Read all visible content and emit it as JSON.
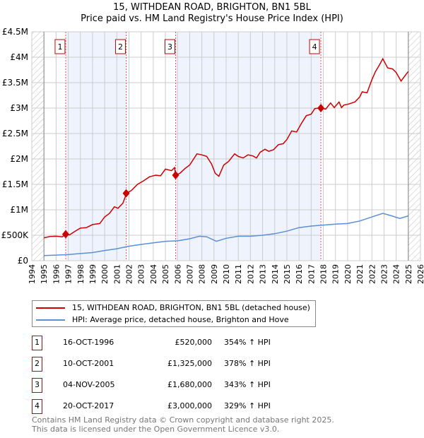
{
  "chart_data": {
    "type": "line",
    "title": "15, WITHDEAN ROAD, BRIGHTON, BN1 5BL",
    "subtitle": "Price paid vs. HM Land Registry's House Price Index (HPI)",
    "xlim": [
      1994,
      2026
    ],
    "ylim": [
      0,
      4500000
    ],
    "x_ticks": [
      "1994",
      "1995",
      "1996",
      "1997",
      "1998",
      "1999",
      "2000",
      "2001",
      "2002",
      "2003",
      "2004",
      "2005",
      "2006",
      "2007",
      "2008",
      "2009",
      "2010",
      "2011",
      "2012",
      "2013",
      "2014",
      "2015",
      "2016",
      "2017",
      "2018",
      "2019",
      "2020",
      "2021",
      "2022",
      "2023",
      "2024",
      "2025",
      "2026"
    ],
    "y_ticks": [
      {
        "v": 0,
        "label": "£0"
      },
      {
        "v": 500000,
        "label": "£500K"
      },
      {
        "v": 1000000,
        "label": "£1M"
      },
      {
        "v": 1500000,
        "label": "£1.5M"
      },
      {
        "v": 2000000,
        "label": "£2M"
      },
      {
        "v": 2500000,
        "label": "£2.5M"
      },
      {
        "v": 3000000,
        "label": "£3M"
      },
      {
        "v": 3500000,
        "label": "£3.5M"
      },
      {
        "v": 4000000,
        "label": "£4M"
      },
      {
        "v": 4500000,
        "label": "£4.5M"
      }
    ],
    "grid": true,
    "series": [
      {
        "name": "15, WITHDEAN ROAD, BRIGHTON, BN1 5BL (detached house)",
        "color": "#cc0000",
        "x": [
          1995,
          1995.5,
          1996,
          1996.5,
          1996.8,
          1997.1,
          1997.5,
          1998,
          1998.5,
          1999,
          1999.6,
          2000,
          2000.4,
          2000.8,
          2001.1,
          2001.5,
          2001.8,
          2002.2,
          2002.7,
          2003.2,
          2003.7,
          2004.2,
          2004.6,
          2005,
          2005.5,
          2005.75,
          2005.85,
          2006.2,
          2006.6,
          2007,
          2007.6,
          2008,
          2008.4,
          2008.8,
          2009.1,
          2009.4,
          2009.8,
          2010.2,
          2010.7,
          2011,
          2011.4,
          2011.8,
          2012.2,
          2012.5,
          2012.8,
          2013.2,
          2013.5,
          2013.9,
          2014.3,
          2014.7,
          2015,
          2015.4,
          2015.8,
          2016.2,
          2016.6,
          2017,
          2017.3,
          2017.6,
          2017.8,
          2018.2,
          2018.6,
          2018.9,
          2019.3,
          2019.5,
          2019.7,
          2020.1,
          2020.6,
          2021,
          2021.2,
          2021.6,
          2022,
          2022.3,
          2022.6,
          2022.9,
          2023.3,
          2023.7,
          2024,
          2024.4,
          2024.8,
          2025
        ],
        "y": [
          450000,
          475000,
          480000,
          470000,
          520000,
          505000,
          570000,
          640000,
          650000,
          710000,
          730000,
          860000,
          930000,
          1060000,
          1030000,
          1130000,
          1325000,
          1380000,
          1500000,
          1570000,
          1650000,
          1680000,
          1670000,
          1800000,
          1770000,
          1830000,
          1680000,
          1720000,
          1810000,
          1880000,
          2100000,
          2080000,
          2050000,
          1900000,
          1720000,
          1660000,
          1880000,
          1950000,
          2100000,
          2050000,
          2020000,
          2080000,
          2060000,
          2020000,
          2130000,
          2190000,
          2150000,
          2180000,
          2280000,
          2300000,
          2380000,
          2550000,
          2530000,
          2700000,
          2850000,
          2880000,
          2990000,
          3000000,
          3000000,
          2980000,
          3100000,
          3010000,
          3120000,
          3010000,
          3060000,
          3080000,
          3120000,
          3220000,
          3320000,
          3300000,
          3560000,
          3720000,
          3840000,
          3970000,
          3790000,
          3770000,
          3700000,
          3530000,
          3660000,
          3720000
        ]
      },
      {
        "name": "HPI: Average price, detached house, Brighton and Hove",
        "color": "#5b8fd6",
        "x": [
          1995,
          1996,
          1997,
          1998,
          1999,
          2000,
          2001,
          2002,
          2003,
          2004,
          2005,
          2006,
          2007,
          2007.8,
          2008.4,
          2009.2,
          2010,
          2011,
          2012,
          2013,
          2014,
          2015,
          2016,
          2017,
          2018,
          2019,
          2020,
          2021,
          2022,
          2022.9,
          2023.5,
          2024.3,
          2025
        ],
        "y": [
          100000,
          110000,
          120000,
          140000,
          160000,
          200000,
          235000,
          285000,
          320000,
          350000,
          380000,
          390000,
          430000,
          480000,
          470000,
          380000,
          440000,
          480000,
          480000,
          500000,
          530000,
          580000,
          650000,
          680000,
          700000,
          720000,
          730000,
          780000,
          860000,
          930000,
          890000,
          830000,
          880000
        ]
      }
    ],
    "sales": [
      {
        "id": "1",
        "x": 1996.79,
        "price": 520000,
        "date": "16-OCT-1996",
        "price_label": "£520,000",
        "hpi": "354% ↑ HPI"
      },
      {
        "id": "2",
        "x": 2001.77,
        "price": 1325000,
        "date": "10-OCT-2001",
        "price_label": "£1,325,000",
        "hpi": "378% ↑ HPI"
      },
      {
        "id": "3",
        "x": 2005.84,
        "price": 1680000,
        "date": "04-NOV-2005",
        "price_label": "£1,680,000",
        "hpi": "343% ↑ HPI"
      },
      {
        "id": "4",
        "x": 2017.8,
        "price": 3000000,
        "date": "20-OCT-2017",
        "price_label": "£3,000,000",
        "hpi": "329% ↑ HPI"
      }
    ],
    "hatched_ranges": [
      [
        1994,
        1995
      ],
      [
        2025,
        2026
      ]
    ],
    "shaded_ranges": [
      [
        1996.79,
        2001.77
      ],
      [
        2005.84,
        2017.8
      ]
    ]
  },
  "footer": {
    "line1": "Contains HM Land Registry data © Crown copyright and database right 2025.",
    "line2": "This data is licensed under the Open Government Licence v3.0."
  }
}
